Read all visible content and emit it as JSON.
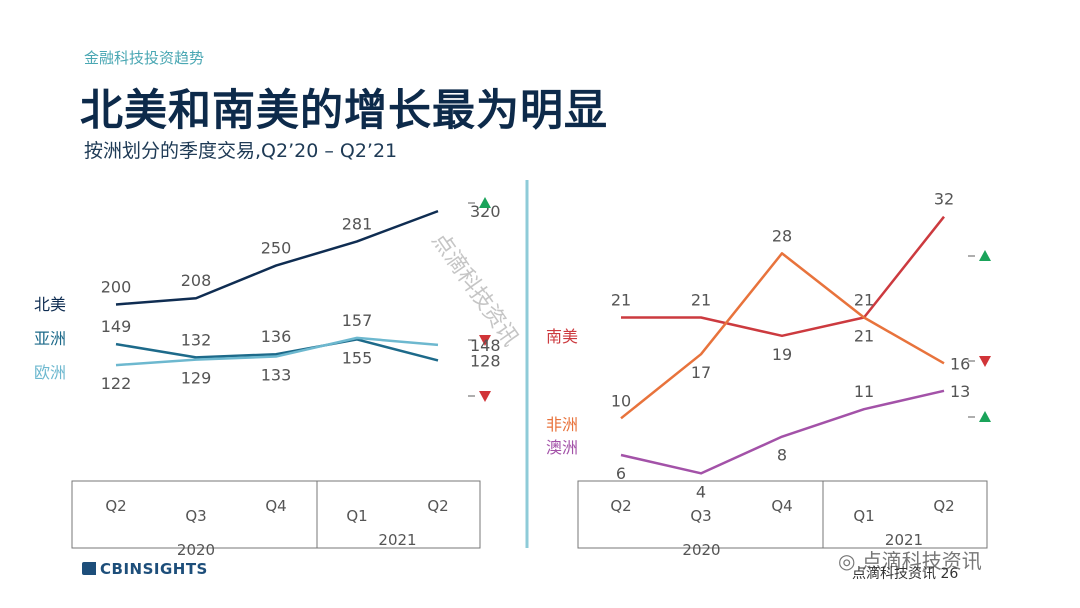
{
  "header": {
    "eyebrow": "金融科技投资趋势",
    "title": "北美和南美的增长最为明显",
    "subtitle": "按洲划分的季度交易,Q2’20 – Q2’21"
  },
  "footer": {
    "logo": "CBINSIGHTS",
    "wechat": "点滴科技资讯",
    "source": "点滴科技资讯 26",
    "watermark": "点滴科技资讯"
  },
  "colors": {
    "north_america": "#0f2d52",
    "asia": "#1d6a8a",
    "europe": "#6db8cf",
    "south_america": "#cc3a3f",
    "africa": "#e8733c",
    "oceania": "#a352a8",
    "up": "#1aa35a",
    "down": "#d13438"
  },
  "chart_data": [
    {
      "type": "line",
      "categories": [
        "Q2",
        "Q3",
        "Q4",
        "Q1",
        "Q2"
      ],
      "year_groups": [
        {
          "label": "2020",
          "span": [
            0,
            2
          ]
        },
        {
          "label": "2021",
          "span": [
            3,
            4
          ]
        }
      ],
      "series": [
        {
          "name": "北美",
          "key": "north_america",
          "values": [
            200,
            208,
            250,
            281,
            320
          ],
          "trend": "up"
        },
        {
          "name": "亚洲",
          "key": "asia",
          "values": [
            149,
            132,
            136,
            155,
            128
          ],
          "trend": "down"
        },
        {
          "name": "欧洲",
          "key": "europe",
          "values": [
            122,
            129,
            133,
            157,
            148
          ],
          "trend": "down"
        }
      ],
      "label_positions": {
        "north_america": [
          "above",
          "above",
          "above",
          "above",
          "left"
        ],
        "asia": [
          "above",
          "above",
          "above",
          "below",
          "left"
        ],
        "europe": [
          "below",
          "below",
          "below",
          "above",
          "left"
        ]
      },
      "ylim": [
        0,
        360
      ]
    },
    {
      "type": "line",
      "categories": [
        "Q2",
        "Q3",
        "Q4",
        "Q1",
        "Q2"
      ],
      "year_groups": [
        {
          "label": "2020",
          "span": [
            0,
            2
          ]
        },
        {
          "label": "2021",
          "span": [
            3,
            4
          ]
        }
      ],
      "series": [
        {
          "name": "南美",
          "key": "south_america",
          "values": [
            21,
            21,
            19,
            21,
            32
          ],
          "trend": "up"
        },
        {
          "name": "非洲",
          "key": "africa",
          "values": [
            10,
            17,
            28,
            21,
            16
          ],
          "trend": "down"
        },
        {
          "name": "澳洲",
          "key": "oceania",
          "values": [
            6,
            4,
            8,
            11,
            13
          ],
          "trend": "up"
        }
      ],
      "label_positions": {
        "south_america": [
          "above",
          "above",
          "below",
          "above",
          "above"
        ],
        "africa": [
          "above",
          "below",
          "above",
          "below",
          "right"
        ],
        "oceania": [
          "below",
          "below",
          "below",
          "above",
          "right"
        ]
      },
      "ylim": [
        0,
        36
      ]
    }
  ]
}
